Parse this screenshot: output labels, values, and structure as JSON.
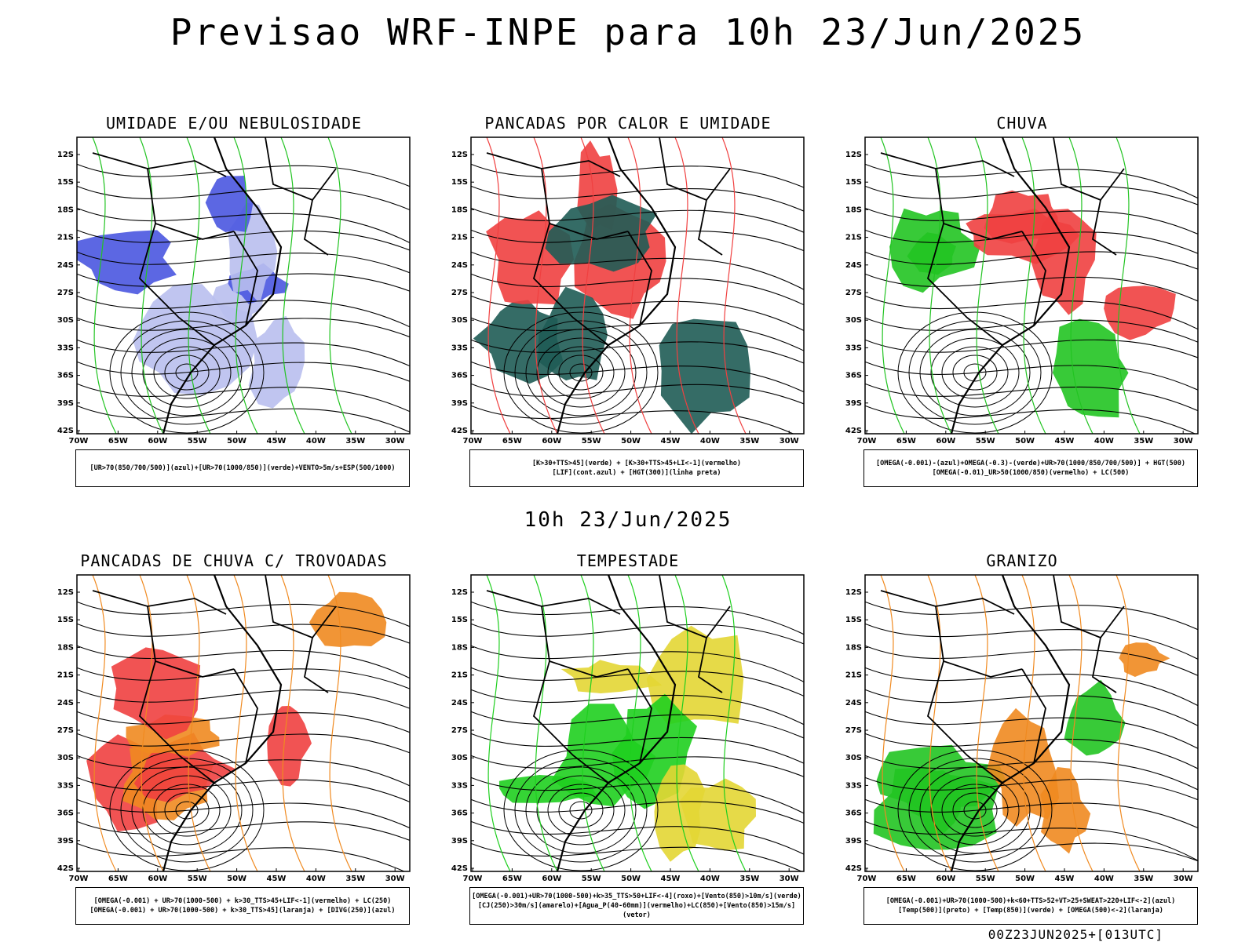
{
  "header": {
    "title": "Previsao WRF-INPE  para 10h 23/Jun/2025"
  },
  "middle": {
    "title": "10h 23/Jun/2025"
  },
  "footer": {
    "run_stamp": "00Z23JUN2025+[013UTC]"
  },
  "axes": {
    "lat_labels": [
      "12S",
      "15S",
      "18S",
      "21S",
      "24S",
      "27S",
      "30S",
      "33S",
      "36S",
      "39S",
      "42S"
    ],
    "lon_labels": [
      "70W",
      "65W",
      "60W",
      "55W",
      "50W",
      "45W",
      "40W",
      "35W",
      "30W"
    ]
  },
  "panels": [
    {
      "title": "UMIDADE E/OU NEBULOSIDADE",
      "legend": [
        "[UR>70(850/700/500)](azul)+[UR>70(1000/850)](verde)+VENTO>5m/s+ESP(500/1000)"
      ],
      "colors": {
        "fill1": "#b9bfee",
        "fill2": "#4a56e0",
        "contour_green": "#22c422",
        "contour_red": "#e83030"
      }
    },
    {
      "title": "PANCADAS POR CALOR E UMIDADE",
      "legend": [
        "[K>30+TTS>45](verde) + [K>30+TTS>45+LI<-1](vermelho)",
        "[LIF](cont.azul) + [HGT(300)](linha preta)"
      ],
      "colors": {
        "fill1": "#1f5c55",
        "fill2": "#f04040"
      }
    },
    {
      "title": "CHUVA",
      "legend": [
        "[OMEGA(-0.001)-(azul)+OMEGA(-0.3)-(verde)+UR>70(1000/850/700/500)] + HGT(500)",
        "[OMEGA(-0.01)_UR>50(1000/850)(vermelho) + LC(500)"
      ],
      "colors": {
        "fill1": "#f04040",
        "fill2": "#22c422"
      }
    },
    {
      "title": "PANCADAS DE CHUVA C/ TROVOADAS",
      "legend": [
        "[OMEGA(-0.001) + UR>70(1000-500) + k>30_TTS>45+LIF<-1](vermelho) + LC(250)",
        "[OMEGA(-0.001) + UR>70(1000-500) + k>30_TTS>45](laranja) + [DIVG(250)](azul)"
      ],
      "colors": {
        "fill1": "#f04040",
        "fill2": "#f08a20"
      }
    },
    {
      "title": "TEMPESTADE",
      "legend": [
        "[OMEGA(-0.001)+UR>70(1000-500)+k>35_TTS>50+LIF<-4](roxo)+[Vento(850)>10m/s](verde)",
        "[CJ(250)>30m/s](amarelo)+[Agua_P(40-60mm)](vermelho)+LC(850)+[Vento(850)>15m/s](vetor)"
      ],
      "colors": {
        "fill1": "#e3d634",
        "fill2": "#1fcf1f"
      }
    },
    {
      "title": "GRANIZO",
      "legend": [
        "[OMEGA(-0.001)+UR>70(1000-500)+k<60+TTS>52+VT>25+SWEAT>220+LIF<-2](azul)",
        "[Temp(500)](preto) + [Temp(850)](verde) + [OMEGA(500)<-2](laranja)"
      ],
      "colors": {
        "fill1": "#22c422",
        "fill2": "#f08a20"
      }
    }
  ]
}
